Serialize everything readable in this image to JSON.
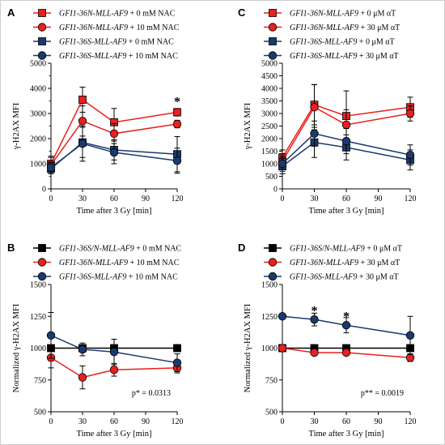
{
  "colors": {
    "red": "#e8201f",
    "navy": "#1a3a6e",
    "black": "#000000"
  },
  "chart_data": [
    {
      "panel": "A",
      "type": "line",
      "xlabel": "Time after 3 Gy [min]",
      "ylabel": "γ-H2AX MFI",
      "xticks": [
        0,
        30,
        60,
        90,
        120
      ],
      "yticks": [
        0,
        1000,
        2000,
        3000,
        4000,
        5000
      ],
      "xlim": [
        0,
        120
      ],
      "ylim": [
        0,
        5000
      ],
      "legend_position": "top",
      "x": [
        0,
        30,
        60,
        120
      ],
      "series": [
        {
          "name_it": "GFI1-36N-MLL-AF9",
          "name_tail": " + 0 mM NAC",
          "color": "#e8201f",
          "marker": "square",
          "values": [
            1000,
            3550,
            2650,
            3050
          ],
          "errors": [
            300,
            500,
            550,
            150
          ]
        },
        {
          "name_it": "GFI1-36N-MLL-AF9",
          "name_tail": " + 10 mM NAC",
          "color": "#e8201f",
          "marker": "circle",
          "values": [
            950,
            2700,
            2200,
            2580
          ],
          "errors": [
            300,
            600,
            400,
            150
          ]
        },
        {
          "name_it": "GFI1-36S-MLL-AF9",
          "name_tail": " + 0 mM NAC",
          "color": "#1a3a6e",
          "marker": "square",
          "values": [
            800,
            1850,
            1550,
            1380
          ],
          "errors": [
            200,
            600,
            400,
            700
          ]
        },
        {
          "name_it": "GFI1-36S-MLL-AF9",
          "name_tail": " + 10 mM NAC",
          "color": "#1a3a6e",
          "marker": "circle",
          "values": [
            850,
            1800,
            1450,
            1120
          ],
          "errors": [
            200,
            700,
            450,
            500
          ]
        }
      ],
      "annotations": [
        {
          "x": 120,
          "y": 3500,
          "text": "*"
        }
      ]
    },
    {
      "panel": "C",
      "type": "line",
      "xlabel": "Time after 3 Gy [min]",
      "ylabel": "γ-H2AX MFI",
      "xticks": [
        0,
        30,
        60,
        90,
        120
      ],
      "yticks": [
        0,
        500,
        1000,
        1500,
        2000,
        2500,
        3000,
        3500,
        4000,
        4500,
        5000
      ],
      "xlim": [
        0,
        120
      ],
      "ylim": [
        0,
        5000
      ],
      "legend_position": "top",
      "x": [
        0,
        30,
        60,
        120
      ],
      "series": [
        {
          "name_it": "GFI1-36N-MLL-AF9",
          "name_tail": " + 0 μM αT",
          "color": "#e8201f",
          "marker": "square",
          "values": [
            1250,
            3350,
            2900,
            3250
          ],
          "errors": [
            300,
            800,
            1000,
            400
          ]
        },
        {
          "name_it": "GFI1-36N-MLL-AF9",
          "name_tail": " + 30 μM αT",
          "color": "#e8201f",
          "marker": "circle",
          "values": [
            1100,
            3250,
            2550,
            3000
          ],
          "errors": [
            300,
            900,
            600,
            300
          ]
        },
        {
          "name_it": "GFI1-36S-MLL-AF9",
          "name_tail": " + 0 μM αT",
          "color": "#1a3a6e",
          "marker": "square",
          "values": [
            900,
            1850,
            1650,
            1150
          ],
          "errors": [
            300,
            600,
            500,
            400
          ]
        },
        {
          "name_it": "GFI1-36S-MLL-AF9",
          "name_tail": " + 30 μM αT",
          "color": "#1a3a6e",
          "marker": "circle",
          "values": [
            1000,
            2200,
            1900,
            1350
          ],
          "errors": [
            300,
            500,
            500,
            400
          ]
        }
      ]
    },
    {
      "panel": "B",
      "type": "line",
      "xlabel": "Time after 3 Gy [min]",
      "ylabel": "Normalized γ-H2AX MFI",
      "xticks": [
        0,
        30,
        60,
        90,
        120
      ],
      "yticks": [
        500,
        750,
        1000,
        1250,
        1500
      ],
      "xlim": [
        0,
        120
      ],
      "ylim": [
        500,
        1500
      ],
      "legend_position": "top",
      "x": [
        0,
        30,
        60,
        120
      ],
      "series": [
        {
          "name_it": "GFI1-36S/N-MLL-AF9",
          "name_tail": " + 0 mM NAC",
          "color": "#000000",
          "marker": "square",
          "values": [
            1000,
            1000,
            1000,
            1000
          ],
          "errors": [
            0,
            0,
            0,
            0
          ]
        },
        {
          "name_it": "GFI1-36N-MLL-AF9",
          "name_tail": " + 10 mM NAC",
          "color": "#e8201f",
          "marker": "circle",
          "values": [
            925,
            770,
            830,
            845
          ],
          "errors": [
            80,
            90,
            50,
            40
          ]
        },
        {
          "name_it": "GFI1-36S-MLL-AF9",
          "name_tail": " + 10 mM NAC",
          "color": "#1a3a6e",
          "marker": "circle",
          "values": [
            1100,
            990,
            970,
            885
          ],
          "errors": [
            180,
            50,
            100,
            70
          ]
        }
      ],
      "pvalue": "p* = 0.0313"
    },
    {
      "panel": "D",
      "type": "line",
      "xlabel": "Time after 3 Gy [min]",
      "ylabel": "Normalized γ-H2AX MFI",
      "xticks": [
        0,
        30,
        60,
        90,
        120
      ],
      "yticks": [
        500,
        750,
        1000,
        1250,
        1500
      ],
      "xlim": [
        0,
        120
      ],
      "ylim": [
        500,
        1500
      ],
      "legend_position": "top",
      "x": [
        0,
        30,
        60,
        120
      ],
      "series": [
        {
          "name_it": "GFI1-36S/N-MLL-AF9",
          "name_tail": " + 0 μM αT",
          "color": "#000000",
          "marker": "square",
          "values": [
            1000,
            1000,
            1000,
            1000
          ],
          "errors": [
            0,
            0,
            0,
            0
          ]
        },
        {
          "name_it": "GFI1-36N-MLL-AF9",
          "name_tail": " + 30 μM αT",
          "color": "#e8201f",
          "marker": "circle",
          "values": [
            1000,
            965,
            965,
            925
          ],
          "errors": [
            20,
            20,
            10,
            30
          ]
        },
        {
          "name_it": "GFI1-36S-MLL-AF9",
          "name_tail": " + 30 μM αT",
          "color": "#1a3a6e",
          "marker": "circle",
          "values": [
            1250,
            1225,
            1180,
            1100
          ],
          "errors": [
            0,
            50,
            60,
            150
          ]
        }
      ],
      "annotations": [
        {
          "x": 30,
          "y": 1300,
          "text": "*"
        },
        {
          "x": 60,
          "y": 1255,
          "text": "*"
        }
      ],
      "pvalue": "p** = 0.0019"
    }
  ]
}
